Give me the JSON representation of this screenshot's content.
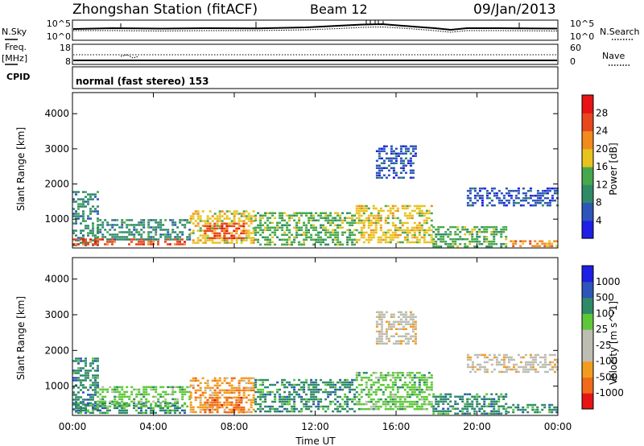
{
  "header": {
    "station": "Zhongshan Station (fitACF)",
    "beam": "Beam 12",
    "date": "09/Jan/2013"
  },
  "noise_panel": {
    "left_label": "N.Sky",
    "right_label": "N.Search",
    "left_ticks": [
      "10^5",
      "10^0"
    ],
    "right_ticks": [
      "10^5",
      "10^0"
    ]
  },
  "freq_panel": {
    "left_label_1": "Freq.",
    "left_label_2": "[MHz]",
    "right_label": "Nave",
    "left_ticks": [
      "18",
      "8"
    ],
    "right_ticks": [
      "60",
      "0"
    ]
  },
  "cpid": {
    "label": "CPID",
    "text": "normal (fast stereo) 153"
  },
  "time_axis": {
    "title": "Time UT",
    "ticks": [
      "00:00",
      "04:00",
      "08:00",
      "12:00",
      "16:00",
      "20:00",
      "00:00"
    ]
  },
  "colors": {
    "power_scale": [
      "#1e1ee6",
      "#2e55b8",
      "#2f8a68",
      "#46a84a",
      "#e8c21e",
      "#f28a1e",
      "#e8461e",
      "#e61414"
    ],
    "velocity_scale": [
      "#e61414",
      "#f06a1a",
      "#f29b1e",
      "#bdbdb2",
      "#bdbdb2",
      "#5ec83a",
      "#2f8a68",
      "#2e55b8",
      "#1e1ee6"
    ]
  },
  "chart_data": [
    {
      "type": "heatmap",
      "name": "power",
      "ylabel": "Slant Range [km]",
      "y_ticks": [
        "1000",
        "2000",
        "3000",
        "4000"
      ],
      "ylim": [
        180,
        4600
      ],
      "xlim_hours": [
        0,
        24
      ],
      "colorbar": {
        "label": "Power [dB]",
        "ticks": [
          "4",
          "8",
          "12",
          "16",
          "20",
          "24",
          "28"
        ]
      },
      "regions": [
        {
          "t0": 0.0,
          "t1": 1.2,
          "r0": 250,
          "r1": 1800,
          "level": 2
        },
        {
          "t0": 0.0,
          "t1": 5.5,
          "r0": 250,
          "r1": 450,
          "level": 6
        },
        {
          "t0": 1.2,
          "t1": 5.8,
          "r0": 450,
          "r1": 1000,
          "level": 2
        },
        {
          "t0": 5.8,
          "t1": 9.0,
          "r0": 300,
          "r1": 1250,
          "level": 4
        },
        {
          "t0": 6.5,
          "t1": 8.5,
          "r0": 450,
          "r1": 900,
          "level": 6
        },
        {
          "t0": 9.0,
          "t1": 14.0,
          "r0": 300,
          "r1": 1200,
          "level": 3
        },
        {
          "t0": 14.0,
          "t1": 17.8,
          "r0": 350,
          "r1": 1400,
          "level": 4
        },
        {
          "t0": 15.0,
          "t1": 17.0,
          "r0": 2200,
          "r1": 3100,
          "level": 1
        },
        {
          "t0": 17.8,
          "t1": 21.5,
          "r0": 250,
          "r1": 800,
          "level": 3
        },
        {
          "t0": 19.5,
          "t1": 24.0,
          "r0": 1400,
          "r1": 1900,
          "level": 1
        },
        {
          "t0": 21.5,
          "t1": 24.0,
          "r0": 250,
          "r1": 400,
          "level": 5
        }
      ]
    },
    {
      "type": "heatmap",
      "name": "velocity",
      "ylabel": "Slant Range [km]",
      "y_ticks": [
        "1000",
        "2000",
        "3000",
        "4000"
      ],
      "ylim": [
        180,
        4600
      ],
      "xlim_hours": [
        0,
        24
      ],
      "colorbar": {
        "label": "Velocity [m s^-1]",
        "ticks": [
          "1000",
          "500",
          "100",
          "25",
          "-25",
          "-100",
          "-500",
          "-1000"
        ]
      },
      "regions": [
        {
          "t0": 0.0,
          "t1": 1.2,
          "r0": 250,
          "r1": 1800,
          "level": 6
        },
        {
          "t0": 0.0,
          "t1": 5.5,
          "r0": 250,
          "r1": 550,
          "level": 6
        },
        {
          "t0": 1.2,
          "t1": 5.8,
          "r0": 450,
          "r1": 1000,
          "level": 5
        },
        {
          "t0": 5.8,
          "t1": 9.0,
          "r0": 300,
          "r1": 1250,
          "level": 2
        },
        {
          "t0": 6.5,
          "t1": 8.5,
          "r0": 250,
          "r1": 700,
          "level": 1
        },
        {
          "t0": 9.0,
          "t1": 14.0,
          "r0": 300,
          "r1": 1200,
          "level": 6
        },
        {
          "t0": 14.0,
          "t1": 17.8,
          "r0": 350,
          "r1": 1400,
          "level": 5
        },
        {
          "t0": 15.0,
          "t1": 17.0,
          "r0": 2200,
          "r1": 3100,
          "level": 3
        },
        {
          "t0": 17.8,
          "t1": 21.5,
          "r0": 250,
          "r1": 800,
          "level": 6
        },
        {
          "t0": 19.5,
          "t1": 24.0,
          "r0": 1400,
          "r1": 1900,
          "level": 3
        },
        {
          "t0": 21.5,
          "t1": 24.0,
          "r0": 250,
          "r1": 500,
          "level": 6
        }
      ]
    }
  ]
}
